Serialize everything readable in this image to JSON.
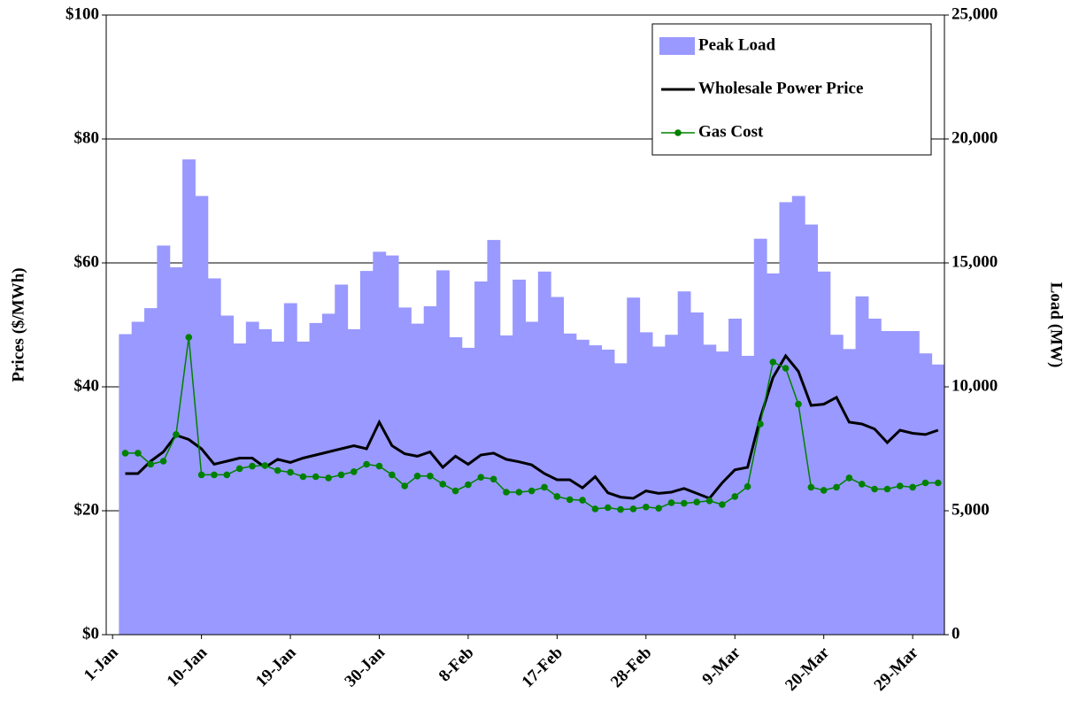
{
  "chart_data": {
    "type": "combo",
    "categories": [
      "1-Jan",
      null,
      null,
      null,
      null,
      null,
      null,
      "10-Jan",
      null,
      null,
      null,
      null,
      null,
      null,
      "19-Jan",
      null,
      null,
      null,
      null,
      null,
      null,
      "30-Jan",
      null,
      null,
      null,
      null,
      null,
      null,
      "8-Feb",
      null,
      null,
      null,
      null,
      null,
      null,
      "17-Feb",
      null,
      null,
      null,
      null,
      null,
      null,
      "28-Feb",
      null,
      null,
      null,
      null,
      null,
      null,
      "9-Mar",
      null,
      null,
      null,
      null,
      null,
      null,
      "20-Mar",
      null,
      null,
      null,
      null,
      null,
      null,
      "29-Mar",
      null,
      null
    ],
    "y_label": "Prices ($/MWh)",
    "y2_label": "Load (MW)",
    "ylim": [
      0,
      100
    ],
    "yticks": [
      {
        "value": 0,
        "label": "$0"
      },
      {
        "value": 20,
        "label": "$20"
      },
      {
        "value": 40,
        "label": "$40"
      },
      {
        "value": 60,
        "label": "$60"
      },
      {
        "value": 80,
        "label": "$80"
      },
      {
        "value": 100,
        "label": "$100"
      }
    ],
    "y2lim": [
      0,
      25000
    ],
    "y2ticks": [
      0,
      {
        "value": 5000,
        "label": "5,000"
      },
      {
        "value": 10000,
        "label": "10,000"
      },
      {
        "value": 15000,
        "label": "15,000"
      },
      {
        "value": 20000,
        "label": "20,000"
      },
      {
        "value": 25000,
        "label": "25,000"
      }
    ],
    "grid": true,
    "legend": "upper right",
    "series": [
      {
        "name": "Peak Load",
        "type": "bar",
        "axis": "y2",
        "color": "#9999ff",
        "values": [
          null,
          12125,
          12625,
          13175,
          15700,
          14825,
          19175,
          17700,
          14375,
          12875,
          11750,
          12625,
          12325,
          11825,
          13375,
          11825,
          12575,
          12950,
          14125,
          12325,
          14675,
          15450,
          15300,
          13200,
          12550,
          13250,
          14700,
          12000,
          11575,
          14250,
          15925,
          12075,
          14325,
          12625,
          14650,
          13625,
          12150,
          11900,
          11675,
          11500,
          10950,
          13600,
          12200,
          11625,
          12100,
          13850,
          13000,
          11700,
          11425,
          12750,
          11250,
          15975,
          14575,
          17450,
          17700,
          16550,
          14650,
          12100,
          11525,
          13650,
          12750,
          12250,
          12250,
          12250,
          11350,
          10900
        ]
      },
      {
        "name": "Wholesale Power Price",
        "type": "line",
        "color": "#000000",
        "values": [
          null,
          26,
          26,
          28,
          29.5,
          32.2,
          31.5,
          30,
          27.5,
          28,
          28.5,
          28.5,
          27,
          28.3,
          27.8,
          28.5,
          29,
          29.5,
          30,
          30.5,
          30,
          34.3,
          30.5,
          29.2,
          28.8,
          29.5,
          27,
          28.8,
          27.5,
          29,
          29.3,
          28.3,
          27.9,
          27.4,
          26,
          25,
          25,
          23.7,
          25.5,
          22.9,
          22.2,
          22,
          23.2,
          22.8,
          23,
          23.6,
          22.8,
          22,
          24.5,
          26.6,
          27,
          35,
          41.5,
          45,
          42.5,
          37,
          37.2,
          38.3,
          34.3,
          34,
          33.2,
          31,
          33,
          32.5,
          32.3,
          33
        ]
      },
      {
        "name": "Gas Cost",
        "type": "line",
        "marker": true,
        "color": "#008000",
        "values": [
          null,
          29.3,
          29.3,
          27.5,
          28,
          32.3,
          48,
          25.8,
          25.8,
          25.8,
          26.8,
          27.2,
          27.3,
          26.5,
          26.2,
          25.5,
          25.5,
          25.3,
          25.8,
          26.3,
          27.5,
          27.2,
          25.8,
          24,
          25.6,
          25.6,
          24.3,
          23.2,
          24.2,
          25.4,
          25.1,
          23,
          23,
          23.2,
          23.8,
          22.3,
          21.8,
          21.7,
          20.3,
          20.5,
          20.2,
          20.3,
          20.6,
          20.4,
          21.3,
          21.2,
          21.4,
          21.6,
          21,
          22.3,
          23.9,
          34,
          44,
          43,
          37.2,
          23.8,
          23.3,
          23.8,
          25.3,
          24.3,
          23.5,
          23.5,
          24,
          23.8,
          24.5,
          24.5
        ]
      }
    ]
  }
}
